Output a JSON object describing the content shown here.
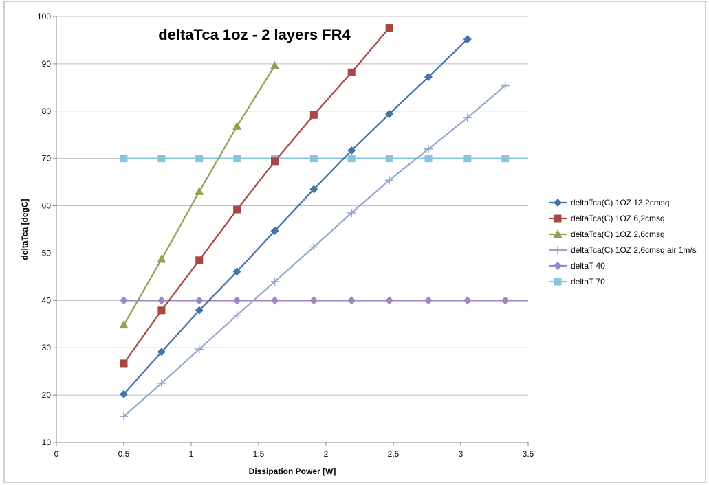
{
  "chart_data": {
    "type": "line",
    "title": "deltaTca 1oz - 2 layers FR4",
    "xlabel": "Dissipation Power [W]",
    "ylabel": "deltaTca [degC]",
    "xlim": [
      0,
      3.5
    ],
    "ylim": [
      10,
      100
    ],
    "x_ticks": [
      "0",
      "0.5",
      "1",
      "1.5",
      "2",
      "2.5",
      "3",
      "3.5"
    ],
    "y_ticks": [
      "10",
      "20",
      "30",
      "40",
      "50",
      "60",
      "70",
      "80",
      "90",
      "100"
    ],
    "grid": "horizontal",
    "legend_position": "right",
    "series": [
      {
        "name": "deltaTca(C) 1OZ 13,2cmsq",
        "color": "#4573A7",
        "marker": "diamond",
        "x": [
          0.5,
          0.78,
          1.06,
          1.34,
          1.62,
          1.91,
          2.19,
          2.47,
          2.76,
          3.05
        ],
        "y": [
          20.2,
          29.1,
          37.9,
          46.1,
          54.7,
          63.5,
          71.7,
          79.4,
          87.2,
          95.2
        ]
      },
      {
        "name": "deltaTca(C) 1OZ 6,2cmsq",
        "color": "#AA4643",
        "marker": "square",
        "x": [
          0.5,
          0.78,
          1.06,
          1.34,
          1.62,
          1.91,
          2.19,
          2.47
        ],
        "y": [
          26.7,
          37.9,
          48.5,
          59.2,
          69.4,
          79.2,
          88.2,
          97.6
        ]
      },
      {
        "name": "deltaTca(C) 1OZ 2,6cmsq",
        "color": "#89A54E",
        "marker": "triangle",
        "x": [
          0.5,
          0.78,
          1.06,
          1.34,
          1.62
        ],
        "y": [
          34.8,
          48.7,
          63.0,
          76.8,
          89.6
        ]
      },
      {
        "name": "deltaTca(C) 1OZ 2,6cmsq air 1m/s",
        "color": "#93A9CF",
        "marker": "plus",
        "x": [
          0.5,
          0.78,
          1.06,
          1.34,
          1.62,
          1.91,
          2.19,
          2.47,
          2.76,
          3.05,
          3.33
        ],
        "y": [
          15.5,
          22.5,
          29.7,
          36.9,
          44.0,
          51.3,
          58.5,
          65.4,
          72.0,
          78.6,
          85.4
        ]
      },
      {
        "name": "deltaT 40",
        "color": "#9E86C9",
        "marker": "diamond",
        "x": [
          0.5,
          0.78,
          1.06,
          1.34,
          1.62,
          1.91,
          2.19,
          2.47,
          2.76,
          3.05,
          3.33
        ],
        "y": [
          40,
          40,
          40,
          40,
          40,
          40,
          40,
          40,
          40,
          40,
          40
        ],
        "extend_to_edge": true
      },
      {
        "name": "deltaT 70",
        "color": "#87C5DA",
        "marker": "square",
        "x": [
          0.5,
          0.78,
          1.06,
          1.34,
          1.62,
          1.91,
          2.19,
          2.47,
          2.76,
          3.05,
          3.33
        ],
        "y": [
          70,
          70,
          70,
          70,
          70,
          70,
          70,
          70,
          70,
          70,
          70
        ],
        "extend_to_edge": true
      }
    ]
  }
}
